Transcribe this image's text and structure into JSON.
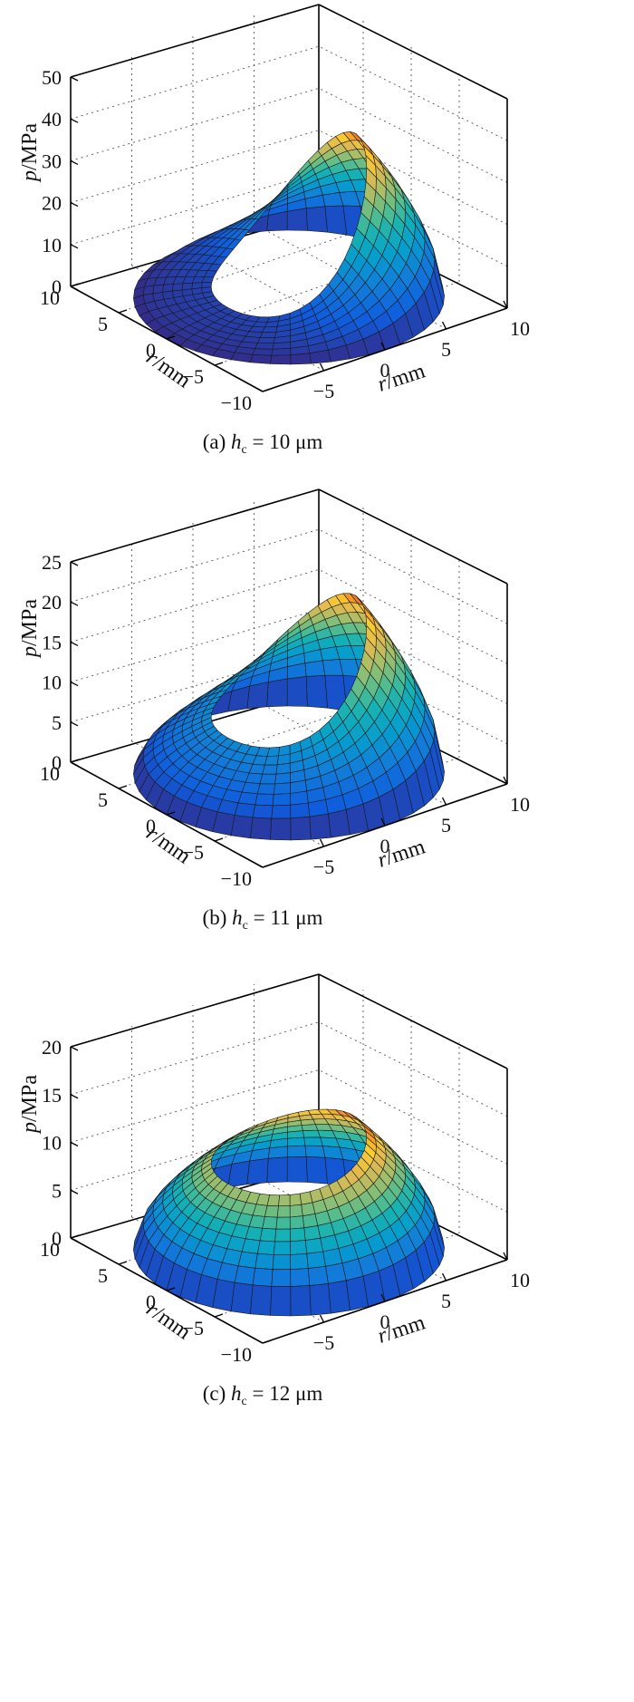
{
  "chart_data": [
    {
      "type": "surface",
      "panel": "a",
      "caption": {
        "prefix": "(a) ",
        "var": "h",
        "sub": "c",
        "rest": " = 10 μm"
      },
      "zlabel": {
        "var": "p",
        "rest": "/MPa"
      },
      "xlabel": {
        "var": "r",
        "rest": "/mm"
      },
      "ylabel": {
        "var": "r",
        "rest": "/mm"
      },
      "zlim": [
        0,
        50
      ],
      "zticks": [
        0,
        10,
        20,
        30,
        40,
        50
      ],
      "xlim": [
        -10,
        10
      ],
      "xticks": [
        -5,
        0,
        5,
        10
      ],
      "ylim": [
        -10,
        10
      ],
      "yticks": [
        10,
        5,
        0,
        -5,
        -10
      ],
      "inner_radius_mm": 5,
      "outer_radius_mm": 10,
      "peak_pressure_MPa": 35,
      "min_pressure_MPa": 2.5
    },
    {
      "type": "surface",
      "panel": "b",
      "caption": {
        "prefix": "(b) ",
        "var": "h",
        "sub": "c",
        "rest": " = 11 μm"
      },
      "zlabel": {
        "var": "p",
        "rest": "/MPa"
      },
      "xlabel": {
        "var": "r",
        "rest": "/mm"
      },
      "ylabel": {
        "var": "r",
        "rest": "/mm"
      },
      "zlim": [
        0,
        25
      ],
      "zticks": [
        0,
        5,
        10,
        15,
        20,
        25
      ],
      "xlim": [
        -10,
        10
      ],
      "xticks": [
        -5,
        0,
        5,
        10
      ],
      "ylim": [
        -10,
        10
      ],
      "yticks": [
        10,
        5,
        0,
        -5,
        -10
      ],
      "inner_radius_mm": 5,
      "outer_radius_mm": 10,
      "peak_pressure_MPa": 20,
      "min_pressure_MPa": 7
    },
    {
      "type": "surface",
      "panel": "c",
      "caption": {
        "prefix": "(c) ",
        "var": "h",
        "sub": "c",
        "rest": " = 12 μm"
      },
      "zlabel": {
        "var": "p",
        "rest": "/MPa"
      },
      "xlabel": {
        "var": "r",
        "rest": "/mm"
      },
      "ylabel": {
        "var": "r",
        "rest": "/mm"
      },
      "zlim": [
        0,
        20
      ],
      "zticks": [
        0,
        5,
        10,
        15,
        20
      ],
      "xlim": [
        -10,
        10
      ],
      "xticks": [
        -5,
        0,
        5,
        10
      ],
      "ylim": [
        -10,
        10
      ],
      "yticks": [
        10,
        5,
        0,
        -5,
        -10
      ],
      "inner_radius_mm": 5,
      "outer_radius_mm": 10,
      "peak_pressure_MPa": 12,
      "min_pressure_MPa": 9
    }
  ]
}
